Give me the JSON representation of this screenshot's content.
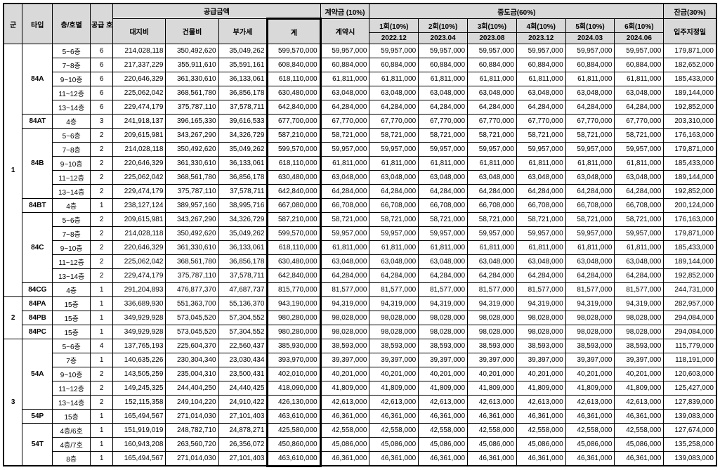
{
  "headers": {
    "gun": "군",
    "type": "타입",
    "floor": "층/호별",
    "supply_units": "공급\n호실",
    "supply_amount": "공급금액",
    "land_cost": "대지비",
    "building_cost": "건물비",
    "vat": "부가세",
    "total": "계",
    "contract": "계약금\n(10%)",
    "contract_at": "계약시",
    "interim": "중도금(60%)",
    "i1": "1회(10%)",
    "i1d": "2022.12",
    "i2": "2회(10%)",
    "i2d": "2023.04",
    "i3": "3회(10%)",
    "i3d": "2023.08",
    "i4": "4회(10%)",
    "i4d": "2023.12",
    "i5": "5회(10%)",
    "i5d": "2024.03",
    "i6": "6회(10%)",
    "i6d": "2024.06",
    "balance": "잔금(30%)",
    "movein": "입주지정일"
  },
  "groups": [
    {
      "gun": "1",
      "types": [
        {
          "type": "84A",
          "rows": [
            {
              "f": "5~6층",
              "u": "6",
              "land": "214,028,118",
              "bld": "350,492,620",
              "vat": "35,049,262",
              "tot": "599,570,000",
              "c": "59,957,000",
              "i": "59,957,000",
              "b": "179,871,000"
            },
            {
              "f": "7~8층",
              "u": "6",
              "land": "217,337,229",
              "bld": "355,911,610",
              "vat": "35,591,161",
              "tot": "608,840,000",
              "c": "60,884,000",
              "i": "60,884,000",
              "b": "182,652,000"
            },
            {
              "f": "9~10층",
              "u": "6",
              "land": "220,646,329",
              "bld": "361,330,610",
              "vat": "36,133,061",
              "tot": "618,110,000",
              "c": "61,811,000",
              "i": "61,811,000",
              "b": "185,433,000"
            },
            {
              "f": "11~12층",
              "u": "6",
              "land": "225,062,042",
              "bld": "368,561,780",
              "vat": "36,856,178",
              "tot": "630,480,000",
              "c": "63,048,000",
              "i": "63,048,000",
              "b": "189,144,000"
            },
            {
              "f": "13~14층",
              "u": "6",
              "land": "229,474,179",
              "bld": "375,787,110",
              "vat": "37,578,711",
              "tot": "642,840,000",
              "c": "64,284,000",
              "i": "64,284,000",
              "b": "192,852,000"
            }
          ]
        },
        {
          "type": "84AT",
          "rows": [
            {
              "f": "4층",
              "u": "3",
              "land": "241,918,137",
              "bld": "396,165,330",
              "vat": "39,616,533",
              "tot": "677,700,000",
              "c": "67,770,000",
              "i": "67,770,000",
              "b": "203,310,000"
            }
          ]
        },
        {
          "type": "84B",
          "rows": [
            {
              "f": "5~6층",
              "u": "2",
              "land": "209,615,981",
              "bld": "343,267,290",
              "vat": "34,326,729",
              "tot": "587,210,000",
              "c": "58,721,000",
              "i": "58,721,000",
              "b": "176,163,000"
            },
            {
              "f": "7~8층",
              "u": "2",
              "land": "214,028,118",
              "bld": "350,492,620",
              "vat": "35,049,262",
              "tot": "599,570,000",
              "c": "59,957,000",
              "i": "59,957,000",
              "b": "179,871,000"
            },
            {
              "f": "9~10층",
              "u": "2",
              "land": "220,646,329",
              "bld": "361,330,610",
              "vat": "36,133,061",
              "tot": "618,110,000",
              "c": "61,811,000",
              "i": "61,811,000",
              "b": "185,433,000"
            },
            {
              "f": "11~12층",
              "u": "2",
              "land": "225,062,042",
              "bld": "368,561,780",
              "vat": "36,856,178",
              "tot": "630,480,000",
              "c": "63,048,000",
              "i": "63,048,000",
              "b": "189,144,000"
            },
            {
              "f": "13~14층",
              "u": "2",
              "land": "229,474,179",
              "bld": "375,787,110",
              "vat": "37,578,711",
              "tot": "642,840,000",
              "c": "64,284,000",
              "i": "64,284,000",
              "b": "192,852,000"
            }
          ]
        },
        {
          "type": "84BT",
          "rows": [
            {
              "f": "4층",
              "u": "1",
              "land": "238,127,124",
              "bld": "389,957,160",
              "vat": "38,995,716",
              "tot": "667,080,000",
              "c": "66,708,000",
              "i": "66,708,000",
              "b": "200,124,000"
            }
          ]
        },
        {
          "type": "84C",
          "rows": [
            {
              "f": "5~6층",
              "u": "2",
              "land": "209,615,981",
              "bld": "343,267,290",
              "vat": "34,326,729",
              "tot": "587,210,000",
              "c": "58,721,000",
              "i": "58,721,000",
              "b": "176,163,000"
            },
            {
              "f": "7~8층",
              "u": "2",
              "land": "214,028,118",
              "bld": "350,492,620",
              "vat": "35,049,262",
              "tot": "599,570,000",
              "c": "59,957,000",
              "i": "59,957,000",
              "b": "179,871,000"
            },
            {
              "f": "9~10층",
              "u": "2",
              "land": "220,646,329",
              "bld": "361,330,610",
              "vat": "36,133,061",
              "tot": "618,110,000",
              "c": "61,811,000",
              "i": "61,811,000",
              "b": "185,433,000"
            },
            {
              "f": "11~12층",
              "u": "2",
              "land": "225,062,042",
              "bld": "368,561,780",
              "vat": "36,856,178",
              "tot": "630,480,000",
              "c": "63,048,000",
              "i": "63,048,000",
              "b": "189,144,000"
            },
            {
              "f": "13~14층",
              "u": "2",
              "land": "229,474,179",
              "bld": "375,787,110",
              "vat": "37,578,711",
              "tot": "642,840,000",
              "c": "64,284,000",
              "i": "64,284,000",
              "b": "192,852,000"
            }
          ]
        },
        {
          "type": "84CG",
          "rows": [
            {
              "f": "4층",
              "u": "1",
              "land": "291,204,893",
              "bld": "476,877,370",
              "vat": "47,687,737",
              "tot": "815,770,000",
              "c": "81,577,000",
              "i": "81,577,000",
              "b": "244,731,000"
            }
          ]
        }
      ]
    },
    {
      "gun": "2",
      "types": [
        {
          "type": "84PA",
          "rows": [
            {
              "f": "15층",
              "u": "1",
              "land": "336,689,930",
              "bld": "551,363,700",
              "vat": "55,136,370",
              "tot": "943,190,000",
              "c": "94,319,000",
              "i": "94,319,000",
              "b": "282,957,000"
            }
          ]
        },
        {
          "type": "84PB",
          "rows": [
            {
              "f": "15층",
              "u": "1",
              "land": "349,929,928",
              "bld": "573,045,520",
              "vat": "57,304,552",
              "tot": "980,280,000",
              "c": "98,028,000",
              "i": "98,028,000",
              "b": "294,084,000"
            }
          ]
        },
        {
          "type": "84PC",
          "rows": [
            {
              "f": "15층",
              "u": "1",
              "land": "349,929,928",
              "bld": "573,045,520",
              "vat": "57,304,552",
              "tot": "980,280,000",
              "c": "98,028,000",
              "i": "98,028,000",
              "b": "294,084,000"
            }
          ]
        }
      ]
    },
    {
      "gun": "3",
      "types": [
        {
          "type": "54A",
          "rows": [
            {
              "f": "5~6층",
              "u": "4",
              "land": "137,765,193",
              "bld": "225,604,370",
              "vat": "22,560,437",
              "tot": "385,930,000",
              "c": "38,593,000",
              "i": "38,593,000",
              "b": "115,779,000"
            },
            {
              "f": "7층",
              "u": "1",
              "land": "140,635,226",
              "bld": "230,304,340",
              "vat": "23,030,434",
              "tot": "393,970,000",
              "c": "39,397,000",
              "i": "39,397,000",
              "b": "118,191,000"
            },
            {
              "f": "9~10층",
              "u": "2",
              "land": "143,505,259",
              "bld": "235,004,310",
              "vat": "23,500,431",
              "tot": "402,010,000",
              "c": "40,201,000",
              "i": "40,201,000",
              "b": "120,603,000"
            },
            {
              "f": "11~12층",
              "u": "2",
              "land": "149,245,325",
              "bld": "244,404,250",
              "vat": "24,440,425",
              "tot": "418,090,000",
              "c": "41,809,000",
              "i": "41,809,000",
              "b": "125,427,000"
            },
            {
              "f": "13~14층",
              "u": "2",
              "land": "152,115,358",
              "bld": "249,104,220",
              "vat": "24,910,422",
              "tot": "426,130,000",
              "c": "42,613,000",
              "i": "42,613,000",
              "b": "127,839,000"
            }
          ]
        },
        {
          "type": "54P",
          "rows": [
            {
              "f": "15층",
              "u": "1",
              "land": "165,494,567",
              "bld": "271,014,030",
              "vat": "27,101,403",
              "tot": "463,610,000",
              "c": "46,361,000",
              "i": "46,361,000",
              "b": "139,083,000"
            }
          ]
        },
        {
          "type": "54T",
          "rows": [
            {
              "f": "4층/6호",
              "u": "1",
              "land": "151,919,019",
              "bld": "248,782,710",
              "vat": "24,878,271",
              "tot": "425,580,000",
              "c": "42,558,000",
              "i": "42,558,000",
              "b": "127,674,000"
            },
            {
              "f": "4층/7호",
              "u": "1",
              "land": "160,943,208",
              "bld": "263,560,720",
              "vat": "26,356,072",
              "tot": "450,860,000",
              "c": "45,086,000",
              "i": "45,086,000",
              "b": "135,258,000"
            },
            {
              "f": "8층",
              "u": "1",
              "land": "165,494,567",
              "bld": "271,014,030",
              "vat": "27,101,403",
              "tot": "463,610,000",
              "c": "46,361,000",
              "i": "46,361,000",
              "b": "139,083,000"
            }
          ]
        }
      ]
    }
  ]
}
